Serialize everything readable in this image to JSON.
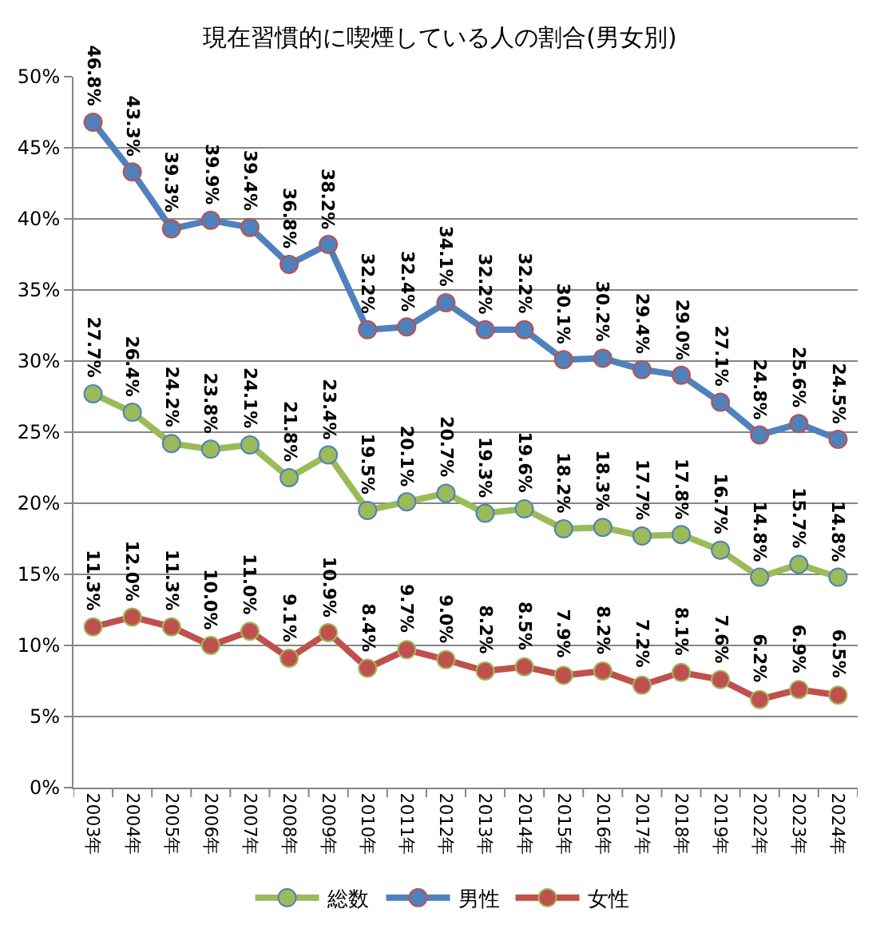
{
  "chart_data": {
    "type": "line",
    "title": "現在習慣的に喫煙している人の割合(男女別)",
    "categories": [
      "2003年",
      "2004年",
      "2005年",
      "2006年",
      "2007年",
      "2008年",
      "2009年",
      "2010年",
      "2011年",
      "2012年",
      "2013年",
      "2014年",
      "2015年",
      "2016年",
      "2017年",
      "2018年",
      "2019年",
      "2022年",
      "2023年",
      "2024年"
    ],
    "series": [
      {
        "name": "総数",
        "color": "#9bbb59",
        "values": [
          27.7,
          26.4,
          24.2,
          23.8,
          24.1,
          21.8,
          23.4,
          19.5,
          20.1,
          20.7,
          19.3,
          19.6,
          18.2,
          18.3,
          17.7,
          17.8,
          16.7,
          14.8,
          15.7,
          14.8
        ],
        "value_labels": [
          "27.7%",
          "26.4%",
          "24.2%",
          "23.8%",
          "24.1%",
          "21.8%",
          "23.4%",
          "19.5%",
          "20.1%",
          "20.7%",
          "19.3%",
          "19.6%",
          "18.2%",
          "18.3%",
          "17.7%",
          "17.8%",
          "16.7%",
          "14.8%",
          "15.7%",
          "14.8%"
        ]
      },
      {
        "name": "男性",
        "color": "#4f81bd",
        "values": [
          46.8,
          43.3,
          39.3,
          39.9,
          39.4,
          36.8,
          38.2,
          32.2,
          32.4,
          34.1,
          32.2,
          32.2,
          30.1,
          30.2,
          29.4,
          29.0,
          27.1,
          24.8,
          25.6,
          24.5
        ],
        "value_labels": [
          "46.8%",
          "43.3%",
          "39.3%",
          "39.9%",
          "39.4%",
          "36.8%",
          "38.2%",
          "32.2%",
          "32.4%",
          "34.1%",
          "32.2%",
          "32.2%",
          "30.1%",
          "30.2%",
          "29.4%",
          "29.0%",
          "27.1%",
          "24.8%",
          "25.6%",
          "24.5%"
        ]
      },
      {
        "name": "女性",
        "color": "#c0504d",
        "values": [
          11.3,
          12.0,
          11.3,
          10.0,
          11.0,
          9.1,
          10.9,
          8.4,
          9.7,
          9.0,
          8.2,
          8.5,
          7.9,
          8.2,
          7.2,
          8.1,
          7.6,
          6.2,
          6.9,
          6.5
        ],
        "value_labels": [
          "11.3%",
          "12.0%",
          "11.3%",
          "10.0%",
          "11.0%",
          "9.1%",
          "10.9%",
          "8.4%",
          "9.7%",
          "9.0%",
          "8.2%",
          "8.5%",
          "7.9%",
          "8.2%",
          "7.2%",
          "8.1%",
          "7.6%",
          "6.2%",
          "6.9%",
          "6.5%"
        ]
      }
    ],
    "ylim": [
      0,
      50
    ],
    "yticks": [
      {
        "value": 0,
        "label": "0%"
      },
      {
        "value": 5,
        "label": "5%"
      },
      {
        "value": 10,
        "label": "10%"
      },
      {
        "value": 15,
        "label": "15%"
      },
      {
        "value": 20,
        "label": "20%"
      },
      {
        "value": 25,
        "label": "25%"
      },
      {
        "value": 30,
        "label": "30%"
      },
      {
        "value": 35,
        "label": "35%"
      },
      {
        "value": 40,
        "label": "40%"
      },
      {
        "value": 45,
        "label": "45%"
      },
      {
        "value": 50,
        "label": "50%"
      }
    ],
    "grid": "y",
    "legend": "bottom",
    "marker": "circle",
    "line_style": "solid"
  }
}
